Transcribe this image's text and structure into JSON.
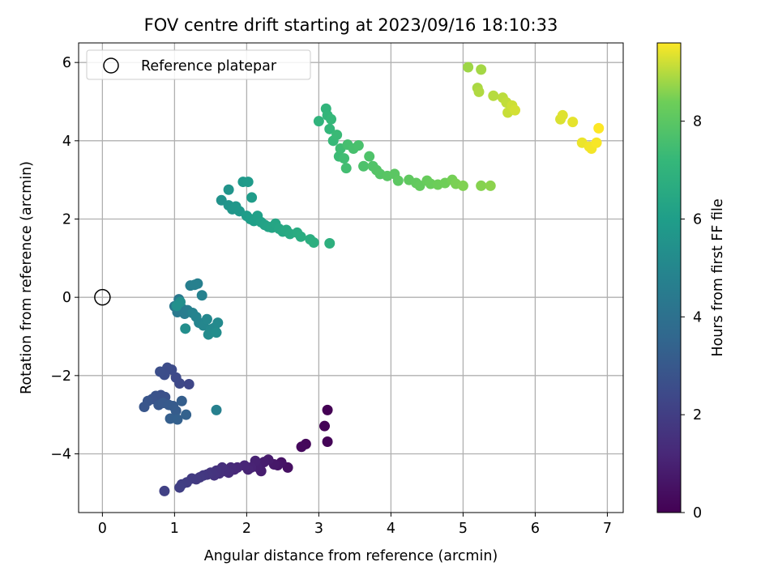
{
  "chart_data": {
    "type": "scatter",
    "title": "FOV centre drift starting at 2023/09/16 18:10:33",
    "xlabel": "Angular distance from reference (arcmin)",
    "ylabel": "Rotation from reference (arcmin)",
    "xlim": [
      -0.33,
      7.22
    ],
    "ylim": [
      -5.5,
      6.5
    ],
    "xticks": [
      0,
      1,
      2,
      3,
      4,
      5,
      6,
      7
    ],
    "yticks": [
      -4,
      -2,
      0,
      2,
      4,
      6
    ],
    "xtick_labels": [
      "0",
      "1",
      "2",
      "3",
      "4",
      "5",
      "6",
      "7"
    ],
    "ytick_labels": [
      "−4",
      "−2",
      "0",
      "2",
      "4",
      "6"
    ],
    "grid": true,
    "legend": {
      "position": "top-left",
      "entries": [
        "Reference platepar"
      ]
    },
    "reference_point": {
      "x": 0,
      "y": 0,
      "marker": "open-circle",
      "label": "Reference platepar"
    },
    "colorbar": {
      "label": "Hours from first FF file",
      "colormap": "viridis",
      "range": [
        0,
        9.6
      ],
      "ticks": [
        0,
        2,
        4,
        6,
        8
      ],
      "tick_labels": [
        "0",
        "2",
        "4",
        "6",
        "8"
      ]
    },
    "points": [
      {
        "x": 3.12,
        "y": -2.88,
        "t": 0.0
      },
      {
        "x": 3.08,
        "y": -3.29,
        "t": 0.05
      },
      {
        "x": 3.12,
        "y": -3.69,
        "t": 0.1
      },
      {
        "x": 2.82,
        "y": -3.75,
        "t": 0.2
      },
      {
        "x": 2.76,
        "y": -3.82,
        "t": 0.25
      },
      {
        "x": 2.57,
        "y": -4.35,
        "t": 0.45
      },
      {
        "x": 2.48,
        "y": -4.22,
        "t": 0.55
      },
      {
        "x": 2.43,
        "y": -4.29,
        "t": 0.62
      },
      {
        "x": 2.38,
        "y": -4.27,
        "t": 0.7
      },
      {
        "x": 2.3,
        "y": -4.15,
        "t": 0.8
      },
      {
        "x": 2.24,
        "y": -4.21,
        "t": 0.85
      },
      {
        "x": 2.2,
        "y": -4.44,
        "t": 0.9
      },
      {
        "x": 2.14,
        "y": -4.33,
        "t": 0.95
      },
      {
        "x": 2.12,
        "y": -4.18,
        "t": 1.0
      },
      {
        "x": 2.06,
        "y": -4.35,
        "t": 1.05
      },
      {
        "x": 2.02,
        "y": -4.4,
        "t": 1.1
      },
      {
        "x": 1.97,
        "y": -4.3,
        "t": 1.15
      },
      {
        "x": 1.87,
        "y": -4.35,
        "t": 1.2
      },
      {
        "x": 1.83,
        "y": -4.4,
        "t": 1.25
      },
      {
        "x": 1.78,
        "y": -4.35,
        "t": 1.3
      },
      {
        "x": 1.75,
        "y": -4.48,
        "t": 1.35
      },
      {
        "x": 1.7,
        "y": -4.44,
        "t": 1.4
      },
      {
        "x": 1.66,
        "y": -4.35,
        "t": 1.45
      },
      {
        "x": 1.62,
        "y": -4.5,
        "t": 1.5
      },
      {
        "x": 1.58,
        "y": -4.43,
        "t": 1.55
      },
      {
        "x": 1.55,
        "y": -4.55,
        "t": 1.6
      },
      {
        "x": 1.5,
        "y": -4.48,
        "t": 1.65
      },
      {
        "x": 1.45,
        "y": -4.53,
        "t": 1.7
      },
      {
        "x": 1.4,
        "y": -4.55,
        "t": 1.75
      },
      {
        "x": 1.35,
        "y": -4.6,
        "t": 1.8
      },
      {
        "x": 1.3,
        "y": -4.65,
        "t": 1.85
      },
      {
        "x": 1.24,
        "y": -4.63,
        "t": 1.9
      },
      {
        "x": 1.17,
        "y": -4.73,
        "t": 1.95
      },
      {
        "x": 1.1,
        "y": -4.78,
        "t": 2.0
      },
      {
        "x": 1.07,
        "y": -4.86,
        "t": 2.05
      },
      {
        "x": 0.86,
        "y": -4.95,
        "t": 2.1
      },
      {
        "x": 1.2,
        "y": -2.22,
        "t": 2.3
      },
      {
        "x": 1.07,
        "y": -2.2,
        "t": 2.35
      },
      {
        "x": 1.02,
        "y": -2.05,
        "t": 2.4
      },
      {
        "x": 0.96,
        "y": -1.85,
        "t": 2.45
      },
      {
        "x": 0.9,
        "y": -1.8,
        "t": 2.5
      },
      {
        "x": 0.86,
        "y": -1.98,
        "t": 2.55
      },
      {
        "x": 0.8,
        "y": -1.9,
        "t": 2.6
      },
      {
        "x": 0.81,
        "y": -2.5,
        "t": 2.65
      },
      {
        "x": 0.87,
        "y": -2.55,
        "t": 2.7
      },
      {
        "x": 0.74,
        "y": -2.52,
        "t": 2.75
      },
      {
        "x": 0.69,
        "y": -2.6,
        "t": 2.8
      },
      {
        "x": 0.63,
        "y": -2.65,
        "t": 2.85
      },
      {
        "x": 0.58,
        "y": -2.8,
        "t": 2.9
      },
      {
        "x": 0.78,
        "y": -2.75,
        "t": 2.95
      },
      {
        "x": 0.84,
        "y": -2.7,
        "t": 3.0
      },
      {
        "x": 0.92,
        "y": -2.75,
        "t": 3.05
      },
      {
        "x": 0.98,
        "y": -2.78,
        "t": 3.1
      },
      {
        "x": 1.02,
        "y": -2.9,
        "t": 3.15
      },
      {
        "x": 1.1,
        "y": -2.65,
        "t": 3.2
      },
      {
        "x": 0.94,
        "y": -3.1,
        "t": 3.25
      },
      {
        "x": 1.04,
        "y": -3.12,
        "t": 3.3
      },
      {
        "x": 1.16,
        "y": -3.0,
        "t": 3.35
      },
      {
        "x": 1.58,
        "y": -2.88,
        "t": 4.7
      },
      {
        "x": 1.0,
        "y": -0.23,
        "t": 4.3
      },
      {
        "x": 1.06,
        "y": -0.05,
        "t": 4.35
      },
      {
        "x": 1.04,
        "y": -0.38,
        "t": 4.4
      },
      {
        "x": 1.1,
        "y": -0.28,
        "t": 4.45
      },
      {
        "x": 1.14,
        "y": -0.42,
        "t": 4.5
      },
      {
        "x": 1.18,
        "y": -0.33,
        "t": 4.55
      },
      {
        "x": 1.22,
        "y": 0.3,
        "t": 4.6
      },
      {
        "x": 1.32,
        "y": 0.35,
        "t": 4.65
      },
      {
        "x": 1.28,
        "y": 0.32,
        "t": 4.7
      },
      {
        "x": 1.38,
        "y": 0.05,
        "t": 4.75
      },
      {
        "x": 1.25,
        "y": -0.4,
        "t": 4.8
      },
      {
        "x": 1.3,
        "y": -0.5,
        "t": 4.85
      },
      {
        "x": 1.34,
        "y": -0.65,
        "t": 4.9
      },
      {
        "x": 1.4,
        "y": -0.72,
        "t": 4.95
      },
      {
        "x": 1.45,
        "y": -0.56,
        "t": 5.0
      },
      {
        "x": 1.5,
        "y": -0.82,
        "t": 5.05
      },
      {
        "x": 1.55,
        "y": -0.78,
        "t": 5.1
      },
      {
        "x": 1.6,
        "y": -0.65,
        "t": 5.15
      },
      {
        "x": 1.47,
        "y": -0.95,
        "t": 5.2
      },
      {
        "x": 1.58,
        "y": -0.9,
        "t": 5.25
      },
      {
        "x": 1.15,
        "y": -0.8,
        "t": 5.3
      },
      {
        "x": 1.08,
        "y": -0.12,
        "t": 5.35
      },
      {
        "x": 1.03,
        "y": -0.22,
        "t": 5.4
      },
      {
        "x": 1.65,
        "y": 2.48,
        "t": 5.5
      },
      {
        "x": 1.75,
        "y": 2.75,
        "t": 5.55
      },
      {
        "x": 1.75,
        "y": 2.35,
        "t": 5.6
      },
      {
        "x": 1.8,
        "y": 2.25,
        "t": 5.65
      },
      {
        "x": 1.85,
        "y": 2.32,
        "t": 5.7
      },
      {
        "x": 1.9,
        "y": 2.2,
        "t": 5.75
      },
      {
        "x": 1.95,
        "y": 2.95,
        "t": 5.8
      },
      {
        "x": 2.02,
        "y": 2.95,
        "t": 5.85
      },
      {
        "x": 2.07,
        "y": 2.55,
        "t": 5.9
      },
      {
        "x": 2.0,
        "y": 2.08,
        "t": 5.95
      },
      {
        "x": 2.05,
        "y": 2.0,
        "t": 6.0
      },
      {
        "x": 2.1,
        "y": 1.95,
        "t": 6.05
      },
      {
        "x": 2.15,
        "y": 2.08,
        "t": 6.1
      },
      {
        "x": 2.2,
        "y": 1.92,
        "t": 6.15
      },
      {
        "x": 2.25,
        "y": 1.85,
        "t": 6.2
      },
      {
        "x": 2.3,
        "y": 1.8,
        "t": 6.25
      },
      {
        "x": 2.35,
        "y": 1.78,
        "t": 6.3
      },
      {
        "x": 2.4,
        "y": 1.88,
        "t": 6.35
      },
      {
        "x": 2.45,
        "y": 1.75,
        "t": 6.4
      },
      {
        "x": 2.5,
        "y": 1.68,
        "t": 6.45
      },
      {
        "x": 2.55,
        "y": 1.72,
        "t": 6.5
      },
      {
        "x": 2.6,
        "y": 1.62,
        "t": 6.55
      },
      {
        "x": 2.7,
        "y": 1.65,
        "t": 6.6
      },
      {
        "x": 2.75,
        "y": 1.55,
        "t": 6.65
      },
      {
        "x": 2.88,
        "y": 1.48,
        "t": 6.7
      },
      {
        "x": 2.93,
        "y": 1.4,
        "t": 6.75
      },
      {
        "x": 3.15,
        "y": 1.38,
        "t": 6.8
      },
      {
        "x": 3.0,
        "y": 4.5,
        "t": 7.0
      },
      {
        "x": 3.1,
        "y": 4.82,
        "t": 7.05
      },
      {
        "x": 3.12,
        "y": 4.65,
        "t": 7.1
      },
      {
        "x": 3.15,
        "y": 4.3,
        "t": 7.15
      },
      {
        "x": 3.17,
        "y": 4.55,
        "t": 7.2
      },
      {
        "x": 3.2,
        "y": 4.0,
        "t": 7.25
      },
      {
        "x": 3.25,
        "y": 4.15,
        "t": 7.3
      },
      {
        "x": 3.28,
        "y": 3.6,
        "t": 7.35
      },
      {
        "x": 3.3,
        "y": 3.8,
        "t": 7.4
      },
      {
        "x": 3.35,
        "y": 3.55,
        "t": 7.45
      },
      {
        "x": 3.38,
        "y": 3.3,
        "t": 7.5
      },
      {
        "x": 3.4,
        "y": 3.9,
        "t": 7.55
      },
      {
        "x": 3.48,
        "y": 3.8,
        "t": 7.6
      },
      {
        "x": 3.55,
        "y": 3.88,
        "t": 7.65
      },
      {
        "x": 3.62,
        "y": 3.35,
        "t": 7.7
      },
      {
        "x": 3.7,
        "y": 3.6,
        "t": 7.75
      },
      {
        "x": 3.75,
        "y": 3.35,
        "t": 7.8
      },
      {
        "x": 3.8,
        "y": 3.25,
        "t": 7.85
      },
      {
        "x": 3.85,
        "y": 3.15,
        "t": 7.9
      },
      {
        "x": 3.95,
        "y": 3.1,
        "t": 7.95
      },
      {
        "x": 4.05,
        "y": 3.15,
        "t": 8.0
      },
      {
        "x": 4.1,
        "y": 2.98,
        "t": 8.05
      },
      {
        "x": 4.25,
        "y": 3.0,
        "t": 8.1
      },
      {
        "x": 4.35,
        "y": 2.92,
        "t": 8.15
      },
      {
        "x": 4.4,
        "y": 2.85,
        "t": 8.2
      },
      {
        "x": 4.5,
        "y": 2.98,
        "t": 8.25
      },
      {
        "x": 4.55,
        "y": 2.9,
        "t": 8.3
      },
      {
        "x": 4.65,
        "y": 2.88,
        "t": 8.35
      },
      {
        "x": 4.75,
        "y": 2.92,
        "t": 8.4
      },
      {
        "x": 4.85,
        "y": 3.0,
        "t": 8.45
      },
      {
        "x": 4.9,
        "y": 2.9,
        "t": 8.5
      },
      {
        "x": 5.0,
        "y": 2.85,
        "t": 8.55
      },
      {
        "x": 5.25,
        "y": 2.85,
        "t": 8.6
      },
      {
        "x": 5.38,
        "y": 2.85,
        "t": 8.65
      },
      {
        "x": 5.07,
        "y": 5.88,
        "t": 8.8
      },
      {
        "x": 5.25,
        "y": 5.82,
        "t": 8.85
      },
      {
        "x": 5.2,
        "y": 5.35,
        "t": 8.9
      },
      {
        "x": 5.22,
        "y": 5.25,
        "t": 8.95
      },
      {
        "x": 5.42,
        "y": 5.15,
        "t": 9.0
      },
      {
        "x": 5.55,
        "y": 5.1,
        "t": 9.05
      },
      {
        "x": 5.6,
        "y": 4.98,
        "t": 9.1
      },
      {
        "x": 5.62,
        "y": 4.72,
        "t": 9.15
      },
      {
        "x": 5.68,
        "y": 4.9,
        "t": 9.2
      },
      {
        "x": 5.72,
        "y": 4.78,
        "t": 9.25
      },
      {
        "x": 6.35,
        "y": 4.55,
        "t": 9.3
      },
      {
        "x": 6.38,
        "y": 4.65,
        "t": 9.35
      },
      {
        "x": 6.52,
        "y": 4.48,
        "t": 9.4
      },
      {
        "x": 6.65,
        "y": 3.95,
        "t": 9.45
      },
      {
        "x": 6.75,
        "y": 3.85,
        "t": 9.5
      },
      {
        "x": 6.78,
        "y": 3.8,
        "t": 9.52
      },
      {
        "x": 6.85,
        "y": 3.95,
        "t": 9.55
      },
      {
        "x": 6.88,
        "y": 4.32,
        "t": 9.6
      }
    ]
  }
}
